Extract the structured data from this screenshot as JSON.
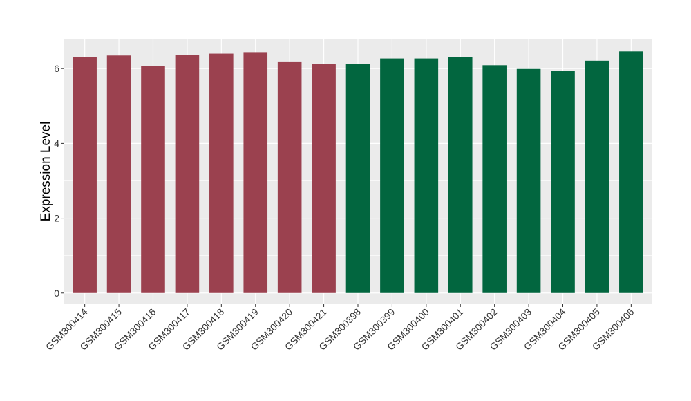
{
  "chart_data": {
    "type": "bar",
    "title": "",
    "xlabel": "",
    "ylabel": "Expression Level",
    "ylim": [
      -0.3,
      6.78
    ],
    "yticks": [
      0,
      2,
      4,
      6
    ],
    "ytick_labels": [
      "0",
      "2",
      "4",
      "6"
    ],
    "grid": true,
    "legend": "none",
    "colors": {
      "panel": "#ebebeb",
      "grid": "#ffffff",
      "group_a": "#9b414f",
      "group_b": "#02663f"
    },
    "categories": [
      "GSM300414",
      "GSM300415",
      "GSM300416",
      "GSM300417",
      "GSM300418",
      "GSM300419",
      "GSM300420",
      "GSM300421",
      "GSM300398",
      "GSM300399",
      "GSM300400",
      "GSM300401",
      "GSM300402",
      "GSM300403",
      "GSM300404",
      "GSM300405",
      "GSM300406"
    ],
    "values": [
      6.31,
      6.35,
      6.06,
      6.37,
      6.4,
      6.44,
      6.19,
      6.12,
      6.12,
      6.27,
      6.27,
      6.31,
      6.09,
      5.99,
      5.94,
      6.21,
      6.46
    ],
    "bar_colors": [
      "#9b414f",
      "#9b414f",
      "#9b414f",
      "#9b414f",
      "#9b414f",
      "#9b414f",
      "#9b414f",
      "#9b414f",
      "#02663f",
      "#02663f",
      "#02663f",
      "#02663f",
      "#02663f",
      "#02663f",
      "#02663f",
      "#02663f",
      "#02663f"
    ]
  }
}
